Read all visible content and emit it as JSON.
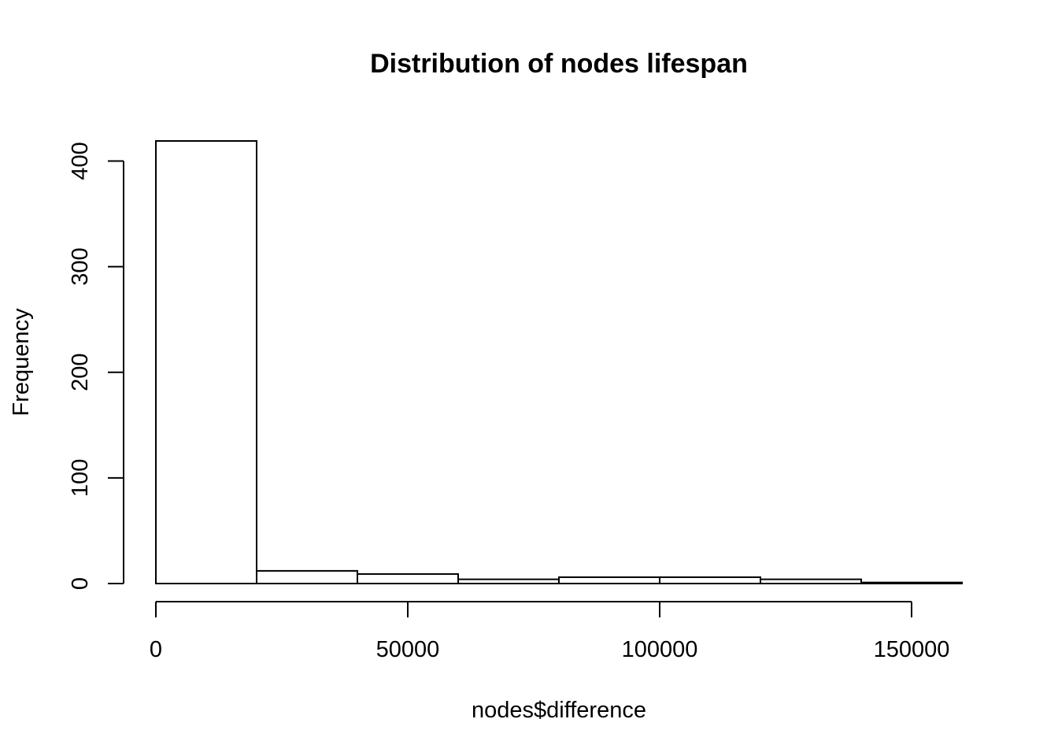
{
  "chart_data": {
    "type": "bar",
    "subtype": "histogram",
    "title": "Distribution of nodes lifespan",
    "xlabel": "nodes$difference",
    "ylabel": "Frequency",
    "bin_edges": [
      0,
      20000,
      40000,
      60000,
      80000,
      100000,
      120000,
      140000,
      160000
    ],
    "values": [
      419,
      12,
      9,
      4,
      6,
      6,
      4,
      1
    ],
    "xlim": [
      0,
      160000
    ],
    "ylim": [
      0,
      419
    ],
    "x_ticks": [
      0,
      50000,
      100000,
      150000
    ],
    "x_tick_labels": [
      "0",
      "50000",
      "100000",
      "150000"
    ],
    "y_ticks": [
      0,
      100,
      200,
      300,
      400
    ],
    "y_tick_labels": [
      "0",
      "100",
      "200",
      "300",
      "400"
    ],
    "grid": false,
    "colors": {
      "bar_fill": "#ffffff",
      "bar_stroke": "#000000"
    }
  }
}
